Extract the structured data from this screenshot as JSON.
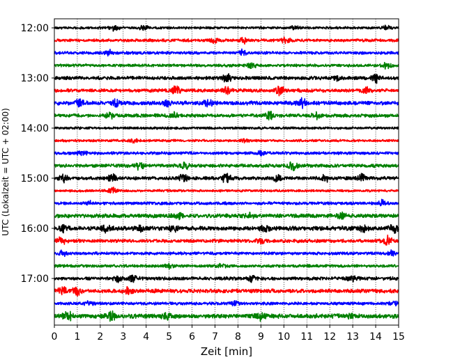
{
  "chart_data": {
    "type": "line",
    "title": "",
    "xlabel": "Zeit  [min]",
    "ylabel": "UTC (Lokalzeit = UTC + 02:00)",
    "xlim": [
      0,
      15
    ],
    "x_ticks": [
      "0",
      "1",
      "2",
      "3",
      "4",
      "5",
      "6",
      "7",
      "8",
      "9",
      "10",
      "11",
      "12",
      "13",
      "14",
      "15"
    ],
    "y_ticks": [
      {
        "label": "12:00",
        "row": 0
      },
      {
        "label": "13:00",
        "row": 4
      },
      {
        "label": "14:00",
        "row": 8
      },
      {
        "label": "15:00",
        "row": 12
      },
      {
        "label": "16:00",
        "row": 16
      },
      {
        "label": "17:00",
        "row": 20
      }
    ],
    "x_grid": true,
    "row_colors": [
      "#000000",
      "#ff0000",
      "#0000ff",
      "#008000"
    ],
    "rows": [
      {
        "start": "12:00",
        "amplitude": 0.25,
        "events": [
          [
            2.6,
            0.5
          ],
          [
            3.9,
            0.45
          ],
          [
            10.5,
            0.4
          ],
          [
            14.5,
            0.4
          ]
        ]
      },
      {
        "start": "12:15",
        "amplitude": 0.3,
        "events": [
          [
            7.0,
            0.5
          ],
          [
            8.3,
            0.6
          ],
          [
            10.1,
            0.5
          ]
        ]
      },
      {
        "start": "12:30",
        "amplitude": 0.3,
        "events": [
          [
            2.4,
            0.5
          ],
          [
            8.2,
            0.5
          ]
        ]
      },
      {
        "start": "12:45",
        "amplitude": 0.3,
        "events": [
          [
            8.6,
            0.7
          ],
          [
            14.5,
            0.6
          ]
        ]
      },
      {
        "start": "13:00",
        "amplitude": 0.35,
        "events": [
          [
            7.5,
            0.8
          ],
          [
            12.3,
            0.5
          ],
          [
            14.0,
            0.8
          ]
        ]
      },
      {
        "start": "13:15",
        "amplitude": 0.35,
        "events": [
          [
            5.3,
            0.8
          ],
          [
            7.5,
            0.7
          ],
          [
            9.8,
            1.0
          ],
          [
            13.6,
            0.9
          ]
        ]
      },
      {
        "start": "13:30",
        "amplitude": 0.4,
        "events": [
          [
            1.1,
            0.8
          ],
          [
            2.7,
            0.7
          ],
          [
            4.9,
            0.6
          ],
          [
            6.7,
            0.8
          ],
          [
            10.8,
            0.8
          ]
        ]
      },
      {
        "start": "13:45",
        "amplitude": 0.35,
        "events": [
          [
            2.4,
            0.6
          ],
          [
            5.2,
            0.5
          ],
          [
            9.4,
            0.6
          ],
          [
            11.4,
            0.5
          ]
        ]
      },
      {
        "start": "14:00",
        "amplitude": 0.25,
        "events": []
      },
      {
        "start": "14:15",
        "amplitude": 0.25,
        "events": [
          [
            3.5,
            0.3
          ],
          [
            8.3,
            0.3
          ]
        ]
      },
      {
        "start": "14:30",
        "amplitude": 0.3,
        "events": [
          [
            1.2,
            0.4
          ],
          [
            9.0,
            0.4
          ]
        ]
      },
      {
        "start": "14:45",
        "amplitude": 0.35,
        "events": [
          [
            3.7,
            0.7
          ],
          [
            5.7,
            0.7
          ],
          [
            10.4,
            0.7
          ]
        ]
      },
      {
        "start": "15:00",
        "amplitude": 0.35,
        "events": [
          [
            0.4,
            0.6
          ],
          [
            2.5,
            0.7
          ],
          [
            5.6,
            0.9
          ],
          [
            7.5,
            0.9
          ],
          [
            9.7,
            0.6
          ],
          [
            11.8,
            0.7
          ],
          [
            13.4,
            0.6
          ]
        ]
      },
      {
        "start": "15:15",
        "amplitude": 0.25,
        "events": [
          [
            2.5,
            0.6
          ]
        ]
      },
      {
        "start": "15:30",
        "amplitude": 0.3,
        "events": [
          [
            1.5,
            0.4
          ],
          [
            14.3,
            0.6
          ]
        ]
      },
      {
        "start": "15:45",
        "amplitude": 0.4,
        "events": [
          [
            5.4,
            0.5
          ],
          [
            8.5,
            0.5
          ],
          [
            12.5,
            0.5
          ]
        ]
      },
      {
        "start": "16:00",
        "amplitude": 0.45,
        "events": [
          [
            0.4,
            0.6
          ],
          [
            2.2,
            0.6
          ],
          [
            3.8,
            0.5
          ],
          [
            5.2,
            0.6
          ],
          [
            9.2,
            0.7
          ],
          [
            13.5,
            0.6
          ],
          [
            14.8,
            0.7
          ]
        ]
      },
      {
        "start": "16:15",
        "amplitude": 0.35,
        "events": [
          [
            0.3,
            0.7
          ],
          [
            9.0,
            0.6
          ],
          [
            14.5,
            0.8
          ]
        ]
      },
      {
        "start": "16:30",
        "amplitude": 0.3,
        "events": [
          [
            0.4,
            0.5
          ],
          [
            14.7,
            0.5
          ]
        ]
      },
      {
        "start": "16:45",
        "amplitude": 0.3,
        "events": [
          [
            5.0,
            0.4
          ],
          [
            7.3,
            0.4
          ]
        ]
      },
      {
        "start": "17:00",
        "amplitude": 0.35,
        "events": [
          [
            2.8,
            0.6
          ],
          [
            3.4,
            0.5
          ],
          [
            8.6,
            0.5
          ],
          [
            13.0,
            0.5
          ]
        ]
      },
      {
        "start": "17:15",
        "amplitude": 0.4,
        "events": [
          [
            0.4,
            1.0
          ],
          [
            1.0,
            0.7
          ],
          [
            3.2,
            0.5
          ]
        ]
      },
      {
        "start": "17:30",
        "amplitude": 0.3,
        "events": [
          [
            1.5,
            0.5
          ],
          [
            7.9,
            0.4
          ],
          [
            14.8,
            0.4
          ]
        ]
      },
      {
        "start": "17:45",
        "amplitude": 0.45,
        "events": [
          [
            0.6,
            1.0
          ],
          [
            2.5,
            0.7
          ],
          [
            4.9,
            0.5
          ],
          [
            9.0,
            0.6
          ],
          [
            13.0,
            0.5
          ]
        ]
      }
    ]
  }
}
